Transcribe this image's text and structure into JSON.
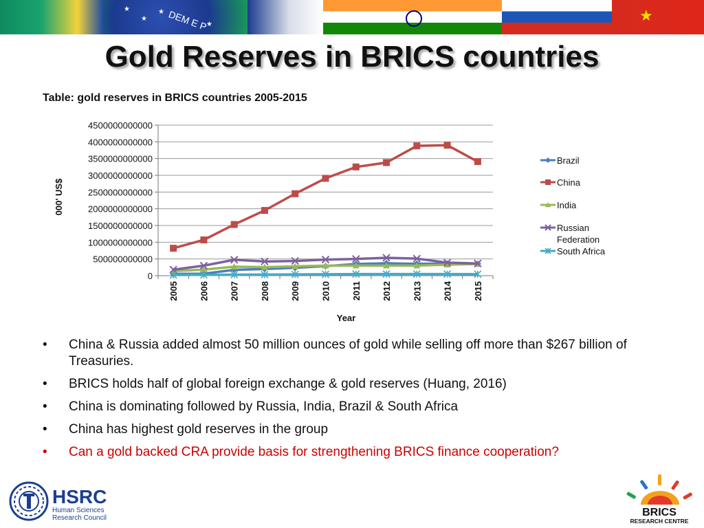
{
  "slide": {
    "title": "Gold Reserves in BRICS countries",
    "caption": "Table: gold reserves in BRICS countries 2005-2015"
  },
  "banner": {
    "text": "DEM E P"
  },
  "chart_data": {
    "type": "line",
    "title": "",
    "xlabel": "Year",
    "ylabel": "000' US$",
    "x": [
      "2005",
      "2006",
      "2007",
      "2008",
      "2009",
      "2010",
      "2011",
      "2012",
      "2013",
      "2014",
      "2015"
    ],
    "yticks": [
      "0",
      "500000000000",
      "1000000000000",
      "1500000000000",
      "2000000000000",
      "2500000000000",
      "3000000000000",
      "3500000000000",
      "4000000000000",
      "4500000000000"
    ],
    "ylim": [
      0,
      4500000000000
    ],
    "grid": true,
    "legend_position": "right",
    "series": [
      {
        "name": "Brazil",
        "color": "#4a7ebb",
        "marker": "diamond",
        "values": [
          55000000000,
          60000000000,
          175000000000,
          200000000000,
          235000000000,
          285000000000,
          350000000000,
          370000000000,
          355000000000,
          360000000000,
          355000000000
        ]
      },
      {
        "name": "China",
        "color": "#be4b48",
        "marker": "square",
        "values": [
          820000000000,
          1070000000000,
          1530000000000,
          1950000000000,
          2450000000000,
          2910000000000,
          3250000000000,
          3380000000000,
          3880000000000,
          3900000000000,
          3410000000000
        ]
      },
      {
        "name": "India",
        "color": "#98b954",
        "marker": "triangle",
        "values": [
          140000000000,
          180000000000,
          270000000000,
          255000000000,
          280000000000,
          300000000000,
          300000000000,
          300000000000,
          300000000000,
          330000000000,
          350000000000
        ]
      },
      {
        "name": "Russian Federation",
        "color": "#7d60a0",
        "marker": "x",
        "values": [
          180000000000,
          300000000000,
          475000000000,
          425000000000,
          440000000000,
          480000000000,
          500000000000,
          535000000000,
          510000000000,
          390000000000,
          365000000000
        ]
      },
      {
        "name": "South Africa",
        "color": "#46aac5",
        "marker": "star",
        "values": [
          20000000000,
          25000000000,
          30000000000,
          33000000000,
          39000000000,
          43000000000,
          48000000000,
          50000000000,
          50000000000,
          49000000000,
          46000000000
        ]
      }
    ]
  },
  "bullets": [
    {
      "text": "China & Russia added almost 50 million ounces of gold while selling off more than $267 billion of Treasuries.",
      "marker": "•"
    },
    {
      "text": "BRICS holds half of global foreign exchange & gold reserves (Huang, 2016)",
      "marker": "•"
    },
    {
      "text": "China is dominating followed by Russia, India, Brazil & South Africa",
      "marker": "•"
    },
    {
      "text": "China has highest gold reserves in the group",
      "marker": "•"
    },
    {
      "text": "Can a gold backed CRA provide basis for strengthening BRICS finance cooperation?",
      "marker": "•",
      "color": "#cc0000"
    }
  ],
  "logos": {
    "hsrc": {
      "name": "HSRC",
      "line1": "Human Sciences",
      "line2": "Research Council",
      "color": "#1a3f8f"
    },
    "brics": {
      "name": "BRICS",
      "subtitle": "RESEARCH CENTRE"
    }
  }
}
